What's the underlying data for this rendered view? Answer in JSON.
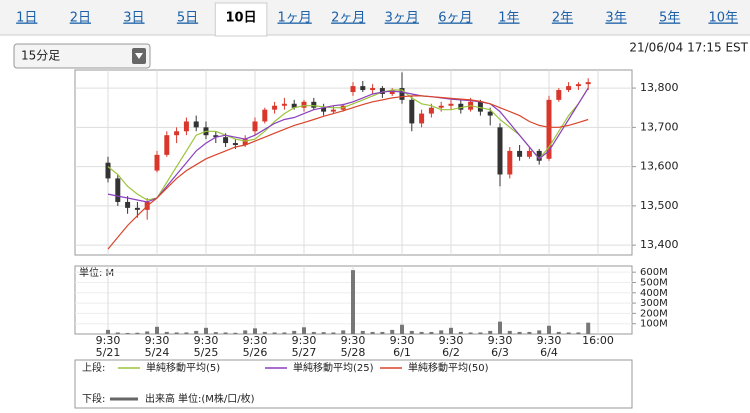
{
  "tabs": [
    "1日",
    "2日",
    "3日",
    "5日",
    "10日",
    "1ヶ月",
    "2ヶ月",
    "3ヶ月",
    "6ヶ月",
    "1年",
    "2年",
    "3年",
    "5年",
    "10年"
  ],
  "active_tab": 4,
  "interval_select": "15分足",
  "timestamp": "21/06/04 17:15 EST",
  "legend": {
    "upper_label": "上段:",
    "lower_label": "下段:"
  },
  "chart_data": [
    {
      "type": "candlestick",
      "up_color": "#d9372b",
      "down_color": "#333333",
      "ylim": [
        13375,
        13846
      ],
      "yticks": [
        {
          "value": 13400,
          "label": "13,400"
        },
        {
          "value": 13500,
          "label": "13,500"
        },
        {
          "value": 13600,
          "label": "13,600"
        },
        {
          "value": 13700,
          "label": "13,700"
        },
        {
          "value": 13800,
          "label": "13,800"
        }
      ],
      "grid": true,
      "open": [
        13610,
        13570,
        13510,
        13495,
        13490,
        13590,
        13630,
        13680,
        13690,
        13715,
        13700,
        13680,
        13675,
        13660,
        13655,
        13690,
        13715,
        13745,
        13755,
        13760,
        13750,
        13765,
        13750,
        13740,
        13745,
        13790,
        13805,
        13795,
        13800,
        13785,
        13800,
        13770,
        13710,
        13735,
        13750,
        13755,
        13760,
        13745,
        13765,
        13740,
        13700,
        13580,
        13640,
        13625,
        13640,
        13620,
        13770,
        13795,
        13805,
        13810
      ],
      "high": [
        13625,
        13580,
        13525,
        13510,
        13520,
        13640,
        13690,
        13700,
        13725,
        13730,
        13715,
        13690,
        13685,
        13670,
        13680,
        13725,
        13750,
        13765,
        13775,
        13770,
        13770,
        13775,
        13760,
        13755,
        13760,
        13815,
        13818,
        13810,
        13805,
        13800,
        13840,
        13780,
        13745,
        13760,
        13765,
        13770,
        13770,
        13775,
        13770,
        13750,
        13710,
        13650,
        13655,
        13650,
        13645,
        13780,
        13800,
        13815,
        13815,
        13825
      ],
      "low": [
        13560,
        13500,
        13480,
        13470,
        13465,
        13585,
        13625,
        13660,
        13680,
        13690,
        13670,
        13660,
        13650,
        13645,
        13650,
        13680,
        13710,
        13735,
        13745,
        13745,
        13740,
        13745,
        13730,
        13735,
        13740,
        13780,
        13790,
        13785,
        13775,
        13780,
        13760,
        13690,
        13700,
        13725,
        13740,
        13745,
        13735,
        13740,
        13730,
        13705,
        13550,
        13570,
        13615,
        13620,
        13605,
        13615,
        13765,
        13790,
        13795,
        13795
      ],
      "close": [
        13570,
        13510,
        13495,
        13490,
        13510,
        13630,
        13680,
        13690,
        13715,
        13700,
        13680,
        13675,
        13660,
        13655,
        13670,
        13715,
        13745,
        13755,
        13760,
        13750,
        13765,
        13750,
        13740,
        13745,
        13755,
        13805,
        13795,
        13800,
        13785,
        13795,
        13770,
        13710,
        13735,
        13750,
        13755,
        13760,
        13745,
        13765,
        13740,
        13730,
        13580,
        13640,
        13625,
        13640,
        13615,
        13770,
        13795,
        13805,
        13810,
        13815
      ],
      "series": [
        {
          "name": "単純移動平均(5)",
          "color": "#9bc43a",
          "values": [
            13600,
            13580,
            13550,
            13530,
            13515,
            13520,
            13560,
            13600,
            13640,
            13680,
            13690,
            13690,
            13680,
            13670,
            13665,
            13670,
            13690,
            13715,
            13735,
            13750,
            13755,
            13755,
            13752,
            13750,
            13750,
            13760,
            13770,
            13780,
            13790,
            13795,
            13795,
            13775,
            13760,
            13755,
            13745,
            13745,
            13750,
            13755,
            13750,
            13745,
            13720,
            13700,
            13680,
            13650,
            13620,
            13650,
            13690,
            13730,
            13760,
            13800
          ]
        },
        {
          "name": "単純移動平均(25)",
          "color": "#8a3fc0",
          "values": [
            13530,
            13525,
            13520,
            13515,
            13510,
            13520,
            13550,
            13580,
            13610,
            13640,
            13660,
            13675,
            13680,
            13675,
            13670,
            13680,
            13695,
            13710,
            13720,
            13725,
            13735,
            13745,
            13750,
            13755,
            13758,
            13765,
            13775,
            13785,
            13790,
            13792,
            13790,
            13785,
            13780,
            13778,
            13775,
            13772,
            13770,
            13768,
            13765,
            13760,
            13740,
            13710,
            13680,
            13650,
            13620,
            13640,
            13680,
            13720,
            13760,
            13800
          ]
        },
        {
          "name": "単純移動平均(50)",
          "color": "#d9452b",
          "values": [
            13390,
            13420,
            13450,
            13475,
            13500,
            13520,
            13545,
            13570,
            13590,
            13605,
            13620,
            13630,
            13640,
            13650,
            13655,
            13665,
            13675,
            13685,
            13695,
            13705,
            13712,
            13720,
            13728,
            13735,
            13742,
            13750,
            13758,
            13765,
            13770,
            13775,
            13778,
            13780,
            13780,
            13778,
            13776,
            13774,
            13772,
            13770,
            13766,
            13760,
            13750,
            13740,
            13730,
            13715,
            13705,
            13700,
            13700,
            13705,
            13712,
            13720
          ]
        }
      ]
    },
    {
      "type": "bar",
      "axis_label": "単位: M",
      "unit_note": "単位:(M株/口/枚)",
      "ylim": [
        0,
        660
      ],
      "yticks": [
        {
          "value": 100,
          "label": "100M"
        },
        {
          "value": 200,
          "label": "200M"
        },
        {
          "value": 300,
          "label": "300M"
        },
        {
          "value": 400,
          "label": "400M"
        },
        {
          "value": 500,
          "label": "500M"
        },
        {
          "value": 600,
          "label": "600M"
        }
      ],
      "series": [
        {
          "name": "出来高",
          "color": "#777777",
          "values": [
            40,
            15,
            10,
            12,
            25,
            70,
            20,
            15,
            15,
            30,
            60,
            18,
            15,
            12,
            35,
            55,
            20,
            15,
            15,
            30,
            65,
            20,
            18,
            15,
            35,
            620,
            30,
            20,
            20,
            40,
            90,
            30,
            20,
            20,
            35,
            60,
            20,
            15,
            15,
            30,
            120,
            30,
            20,
            20,
            35,
            80,
            20,
            15,
            15,
            110
          ]
        }
      ],
      "categories": [
        {
          "time": "9:30",
          "date": "5/21"
        },
        null,
        null,
        null,
        null,
        {
          "time": "9:30",
          "date": "5/24"
        },
        null,
        null,
        null,
        null,
        {
          "time": "9:30",
          "date": "5/25"
        },
        null,
        null,
        null,
        null,
        {
          "time": "9:30",
          "date": "5/26"
        },
        null,
        null,
        null,
        null,
        {
          "time": "9:30",
          "date": "5/27"
        },
        null,
        null,
        null,
        null,
        {
          "time": "9:30",
          "date": "5/28"
        },
        null,
        null,
        null,
        null,
        {
          "time": "9:30",
          "date": "6/1"
        },
        null,
        null,
        null,
        null,
        {
          "time": "9:30",
          "date": "6/2"
        },
        null,
        null,
        null,
        null,
        {
          "time": "9:30",
          "date": "6/3"
        },
        null,
        null,
        null,
        null,
        {
          "time": "9:30",
          "date": "6/4"
        },
        null,
        null,
        null,
        null
      ],
      "x_end_label": "16:00"
    }
  ]
}
